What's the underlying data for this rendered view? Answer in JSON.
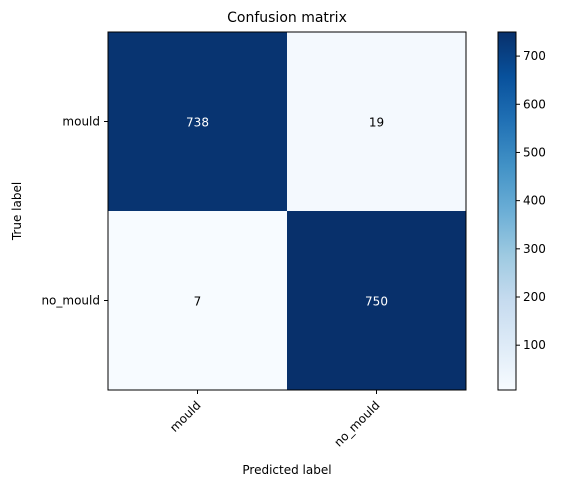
{
  "chart_data": {
    "type": "heatmap",
    "title": "Confusion matrix",
    "xlabel": "Predicted label",
    "ylabel": "True label",
    "x_categories": [
      "mould",
      "no_mould"
    ],
    "y_categories": [
      "mould",
      "no_mould"
    ],
    "values": [
      [
        738,
        19
      ],
      [
        7,
        750
      ]
    ],
    "colormap": "Blues",
    "color_range": [
      7,
      750
    ],
    "colorbar_ticks": [
      100,
      200,
      300,
      400,
      500,
      600,
      700
    ],
    "colors": {
      "low": "#f7fbff",
      "high": "#08306b"
    }
  }
}
